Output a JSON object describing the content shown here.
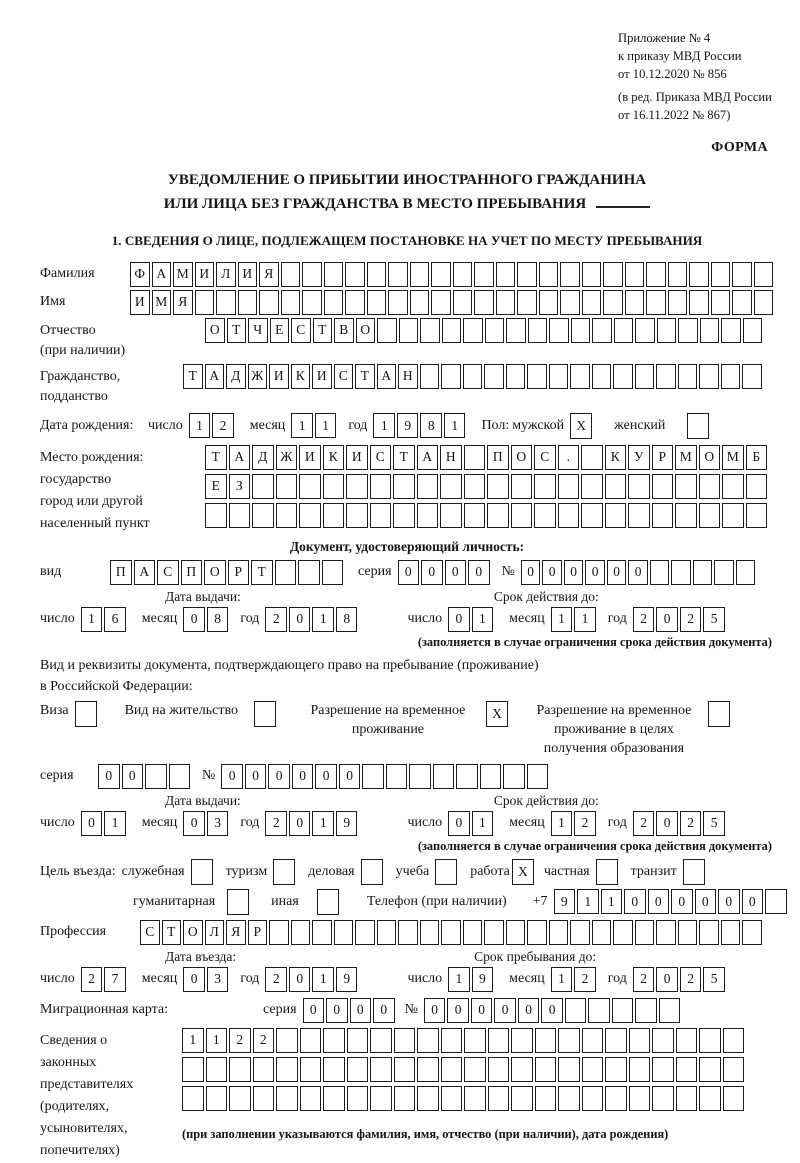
{
  "colors": {
    "ink": "#1d1d1d",
    "paper": "#ffffff"
  },
  "header": {
    "lines": [
      "Приложение № 4",
      "к приказу МВД России",
      "от 10.12.2020 № 856"
    ],
    "amendment": [
      "(в ред. Приказа МВД России",
      "от 16.11.2022 № 867)"
    ],
    "forma": "ФОРМА"
  },
  "title": {
    "line1": "УВЕДОМЛЕНИЕ О ПРИБЫТИИ ИНОСТРАННОГО ГРАЖДАНИНА",
    "line2": "ИЛИ ЛИЦА БЕЗ ГРАЖДАНСТВА В МЕСТО ПРЕБЫВАНИЯ"
  },
  "section1": "1. СВЕДЕНИЯ О ЛИЦЕ, ПОДЛЕЖАЩЕМ ПОСТАНОВКЕ НА УЧЕТ ПО МЕСТУ ПРЕБЫВАНИЯ",
  "date_labels": {
    "day": "число",
    "month": "месяц",
    "year": "год"
  },
  "fields": {
    "surname": {
      "label": "Фамилия",
      "value": "ФАМИЛИЯ",
      "total": 30
    },
    "firstname": {
      "label": "Имя",
      "value": "ИМЯ",
      "total": 30
    },
    "patronymic": {
      "label": "Отчество",
      "label2": "(при наличии)",
      "value": "ОТЧЕСТВО",
      "total": 26
    },
    "citizenship": {
      "label": "Гражданство,",
      "label2": "подданство",
      "value": "ТАДЖИКИСТАН",
      "total": 27
    },
    "birth": {
      "label": "Дата рождения:",
      "day": {
        "value": "12",
        "total": 2
      },
      "month": {
        "value": "11",
        "total": 2
      },
      "year": {
        "value": "1981",
        "total": 4
      },
      "sex_label": "Пол:",
      "male_label": "мужской",
      "male": {
        "value": "X",
        "total": 1
      },
      "female_label": "женский",
      "female": {
        "value": "",
        "total": 1
      }
    },
    "birthplace": {
      "labels": [
        "Место рождения:",
        "государство",
        "город или другой",
        "населенный пункт"
      ],
      "row1": {
        "value": "ТАДЖИКИСТАН ПОС. КУРМОМБ",
        "total": 24
      },
      "row2": {
        "value": "ЕЗ",
        "total": 24
      },
      "row3": {
        "value": "",
        "total": 24
      }
    },
    "identity_doc": {
      "header": "Документ, удостоверяющий личность:",
      "kind_label": "вид",
      "kind": {
        "value": "ПАСПОРТ",
        "total": 10
      },
      "series_label": "серия",
      "series": {
        "value": "0000",
        "total": 4
      },
      "number_label": "№",
      "number": {
        "value": "000000",
        "total": 11
      },
      "issue_header": "Дата выдачи:",
      "issue": {
        "day": {
          "value": "16",
          "total": 2
        },
        "month": {
          "value": "08",
          "total": 2
        },
        "year": {
          "value": "2018",
          "total": 4
        }
      },
      "valid_header": "Срок действия до:",
      "valid": {
        "day": {
          "value": "01",
          "total": 2
        },
        "month": {
          "value": "11",
          "total": 2
        },
        "year": {
          "value": "2025",
          "total": 4
        }
      },
      "note": "(заполняется в случае ограничения срока действия документа)"
    },
    "residence": {
      "intro1": "Вид и реквизиты документа, подтверждающего право на пребывание (проживание)",
      "intro2": "в Российской Федерации:",
      "options": [
        {
          "label": "Виза",
          "checked": {
            "value": "",
            "total": 1
          }
        },
        {
          "label": "Вид на жительство",
          "checked": {
            "value": "",
            "total": 1
          }
        },
        {
          "label": "Разрешение на временное проживание",
          "checked": {
            "value": "X",
            "total": 1
          }
        },
        {
          "label": "Разрешение на временное проживание в целях получения образования",
          "checked": {
            "value": "",
            "total": 1
          }
        }
      ],
      "series_label": "серия",
      "series": {
        "value": "00",
        "total": 4
      },
      "number_label": "№",
      "number": {
        "value": "000000",
        "total": 14
      },
      "issue_header": "Дата выдачи:",
      "issue": {
        "day": {
          "value": "01",
          "total": 2
        },
        "month": {
          "value": "03",
          "total": 2
        },
        "year": {
          "value": "2019",
          "total": 4
        }
      },
      "valid_header": "Срок действия до:",
      "valid": {
        "day": {
          "value": "01",
          "total": 2
        },
        "month": {
          "value": "12",
          "total": 2
        },
        "year": {
          "value": "2025",
          "total": 4
        }
      },
      "note": "(заполняется в случае ограничения срока действия документа)"
    },
    "purpose": {
      "label": "Цель въезда:",
      "options": [
        {
          "label": "служебная",
          "checked": {
            "value": "",
            "total": 1
          }
        },
        {
          "label": "туризм",
          "checked": {
            "value": "",
            "total": 1
          }
        },
        {
          "label": "деловая",
          "checked": {
            "value": "",
            "total": 1
          }
        },
        {
          "label": "учеба",
          "checked": {
            "value": "",
            "total": 1
          }
        },
        {
          "label": "работа",
          "checked": {
            "value": "X",
            "total": 1
          }
        },
        {
          "label": "частная",
          "checked": {
            "value": "",
            "total": 1
          }
        },
        {
          "label": "транзит",
          "checked": {
            "value": "",
            "total": 1
          }
        },
        {
          "label": "гуманитарная",
          "checked": {
            "value": "",
            "total": 1
          }
        },
        {
          "label": "иная",
          "checked": {
            "value": "",
            "total": 1
          }
        }
      ],
      "phone_label": "Телефон (при наличии)",
      "phone_prefix": "+7",
      "phone": {
        "value": "911000000",
        "total": 10
      }
    },
    "profession": {
      "label": "Профессия",
      "value": "СТОЛЯР",
      "total": 29
    },
    "entry": {
      "header": "Дата въезда:",
      "day": {
        "value": "27",
        "total": 2
      },
      "month": {
        "value": "03",
        "total": 2
      },
      "year": {
        "value": "2019",
        "total": 4
      }
    },
    "stay": {
      "header": "Срок пребывания до:",
      "day": {
        "value": "19",
        "total": 2
      },
      "month": {
        "value": "12",
        "total": 2
      },
      "year": {
        "value": "2025",
        "total": 4
      }
    },
    "migration_card": {
      "label": "Миграционная карта:",
      "series_label": "серия",
      "series": {
        "value": "0000",
        "total": 4
      },
      "number_label": "№",
      "number": {
        "value": "000000",
        "total": 11
      }
    },
    "legal_reps": {
      "labels": [
        "Сведения о",
        "законных",
        "представителях",
        "(родителях,",
        "усыновителях,",
        "попечителях)"
      ],
      "row1": {
        "value": "1122",
        "total": 24
      },
      "row2": {
        "value": "",
        "total": 24
      },
      "row3": {
        "value": "",
        "total": 24
      },
      "note": "(при заполнении указываются фамилия, имя, отчество (при наличии), дата рождения)"
    }
  }
}
